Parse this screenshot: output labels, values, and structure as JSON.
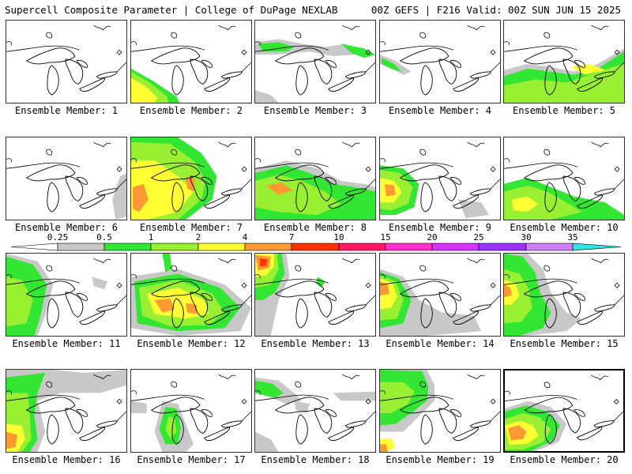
{
  "header": {
    "title_left": "Supercell Composite Parameter | College of DuPage NEXLAB",
    "title_right": "00Z GEFS | F216 Valid: 00Z SUN JUN 15 2025"
  },
  "colors": {
    "c0": "#c8c8c8",
    "c1": "#33e633",
    "c2": "#99f033",
    "c3": "#ffff33",
    "c4": "#ff9933",
    "c5": "#ff3300",
    "c6": "#ff1a66",
    "c7": "#ff33cc",
    "c8": "#d633ff",
    "c9": "#9933ff",
    "c10": "#cc80ff",
    "c11": "#33e6e6"
  },
  "colorbar": {
    "ticks": [
      "0.25",
      "0.5",
      "1",
      "2",
      "4",
      "7",
      "10",
      "15",
      "20",
      "25",
      "30",
      "35"
    ]
  },
  "members": [
    {
      "label": "Ensemble Member: 1",
      "selected": false,
      "blobs": []
    },
    {
      "label": "Ensemble Member: 2",
      "selected": false,
      "blobs": [
        {
          "c": "c1",
          "p": "0,62 28,78 58,98 62,106 0,106"
        },
        {
          "c": "c2",
          "p": "0,66 24,80 46,98 48,106 0,106"
        },
        {
          "c": "c3",
          "p": "0,74 20,86 34,100 30,106 0,106"
        }
      ]
    },
    {
      "label": "Ensemble Member: 3",
      "selected": false,
      "blobs": [
        {
          "c": "c0",
          "p": "0,28 30,24 60,30 90,34 116,30 130,44 100,46 70,40 30,44 0,44"
        },
        {
          "c": "c1",
          "p": "4,30 30,28 50,34 40,40 10,40"
        },
        {
          "c": "c1",
          "p": "110,30 140,36 154,44 140,48 124,42"
        },
        {
          "c": "c0",
          "p": "0,90 20,96 30,106 0,106"
        }
      ]
    },
    {
      "label": "Ensemble Member: 4",
      "selected": false,
      "blobs": [
        {
          "c": "c0",
          "p": "0,44 20,52 40,66 30,70 10,60 0,56"
        },
        {
          "c": "c1",
          "p": "2,48 18,56 28,66 14,62 2,56"
        }
      ]
    },
    {
      "label": "Ensemble Member: 5",
      "selected": false,
      "blobs": [
        {
          "c": "c0",
          "p": "0,64 30,56 60,60 90,66 120,56 154,36 154,106 0,106"
        },
        {
          "c": "c1",
          "p": "0,72 30,62 60,66 90,70 120,62 154,40 154,106 0,106"
        },
        {
          "c": "c2",
          "p": "0,84 40,76 80,80 110,70 140,60 154,56 154,106 0,106"
        },
        {
          "c": "c3",
          "p": "86,60 110,56 130,64 104,70"
        }
      ]
    },
    {
      "label": "Ensemble Member: 6",
      "selected": false,
      "blobs": [
        {
          "c": "c0",
          "p": "146,50 154,46 154,102 140,106 136,80"
        }
      ]
    },
    {
      "label": "Ensemble Member: 7",
      "selected": false,
      "blobs": [
        {
          "c": "c1",
          "p": "0,0 60,0 90,20 110,50 104,80 70,106 0,106"
        },
        {
          "c": "c2",
          "p": "0,6 50,8 80,30 96,56 90,80 60,106 0,106"
        },
        {
          "c": "c3",
          "p": "0,30 30,30 60,50 80,70 60,96 20,106 0,106"
        },
        {
          "c": "c4",
          "p": "2,64 16,60 22,80 10,96 2,92"
        },
        {
          "c": "c4",
          "p": "70,50 82,54 80,70 72,66"
        }
      ]
    },
    {
      "label": "Ensemble Member: 8",
      "selected": false,
      "blobs": [
        {
          "c": "c0",
          "p": "0,40 40,30 80,40 110,56 140,60 154,64 154,106 0,106"
        },
        {
          "c": "c1",
          "p": "0,46 40,36 70,46 100,60 140,66 154,70 154,106 0,106"
        },
        {
          "c": "c2",
          "p": "0,56 30,48 60,56 90,70 110,86 80,100 30,96 0,90"
        },
        {
          "c": "c4",
          "p": "14,62 34,58 48,68 30,74"
        }
      ]
    },
    {
      "label": "Ensemble Member: 9",
      "selected": false,
      "blobs": [
        {
          "c": "c1",
          "p": "0,36 30,40 50,60 44,90 20,100 0,100"
        },
        {
          "c": "c2",
          "p": "0,42 26,46 42,64 36,86 14,94 0,92"
        },
        {
          "c": "c3",
          "p": "0,52 18,56 28,70 18,84 0,84"
        },
        {
          "c": "c4",
          "p": "6,60 18,62 20,74 8,76"
        },
        {
          "c": "c0",
          "p": "100,80 130,84 140,100 110,104"
        }
      ]
    },
    {
      "label": "Ensemble Member: 10",
      "selected": false,
      "blobs": [
        {
          "c": "c1",
          "p": "0,60 30,52 60,64 90,76 130,84 154,100 154,106 0,106"
        },
        {
          "c": "c2",
          "p": "0,70 30,62 56,70 80,84 100,96 60,106 0,106"
        },
        {
          "c": "c3",
          "p": "10,80 30,76 44,86 30,96 12,94"
        }
      ]
    },
    {
      "label": "Ensemble Member: 11",
      "selected": false,
      "blobs": [
        {
          "c": "c0",
          "p": "0,0 40,10 60,40 50,80 40,106 0,106"
        },
        {
          "c": "c1",
          "p": "0,4 34,14 52,40 44,80 36,106 0,106"
        },
        {
          "c": "c2",
          "p": "0,30 20,34 34,60 26,90 0,94"
        },
        {
          "c": "c0",
          "p": "110,30 130,36 126,46 112,42"
        }
      ]
    },
    {
      "label": "Ensemble Member: 12",
      "selected": false,
      "blobs": [
        {
          "c": "c0",
          "p": "0,30 60,20 120,40 154,70 140,100 60,106 0,96"
        },
        {
          "c": "c1",
          "p": "4,36 60,26 114,44 140,70 120,96 60,100 8,90"
        },
        {
          "c": "c2",
          "p": "10,44 60,34 104,52 120,76 100,92 50,94 14,80"
        },
        {
          "c": "c3",
          "p": "20,52 60,44 94,60 100,78 70,84 30,78"
        },
        {
          "c": "c4",
          "p": "30,60 50,58 56,72 40,76"
        },
        {
          "c": "c4",
          "p": "70,64 84,66 84,78 72,76"
        },
        {
          "c": "c1",
          "p": "40,0 50,0 52,20 44,24"
        }
      ]
    },
    {
      "label": "Ensemble Member: 13",
      "selected": false,
      "blobs": [
        {
          "c": "c0",
          "p": "0,0 40,0 44,30 30,60 20,106 0,106"
        },
        {
          "c": "c1",
          "p": "0,0 34,0 38,26 26,50 10,60 0,60"
        },
        {
          "c": "c2",
          "p": "0,0 28,0 30,20 20,40 0,44"
        },
        {
          "c": "c3",
          "p": "0,0 24,0 24,16 14,28 0,30"
        },
        {
          "c": "c4",
          "p": "0,2 20,4 18,18 4,22"
        },
        {
          "c": "c5",
          "p": "6,6 16,8 14,16 6,16"
        },
        {
          "c": "c1",
          "p": "80,30 90,36 84,44 78,38"
        }
      ]
    },
    {
      "label": "Ensemble Member: 14",
      "selected": false,
      "blobs": [
        {
          "c": "c0",
          "p": "0,20 30,30 50,60 80,76 120,80 130,100 60,106 0,106"
        },
        {
          "c": "c1",
          "p": "0,24 24,32 40,60 30,90 0,96"
        },
        {
          "c": "c2",
          "p": "0,28 20,36 30,60 22,84 0,86"
        },
        {
          "c": "c3",
          "p": "0,32 16,38 22,56 14,70 0,72"
        },
        {
          "c": "c4",
          "p": "0,36 10,40 12,52 0,54"
        }
      ]
    },
    {
      "label": "Ensemble Member: 15",
      "selected": false,
      "blobs": [
        {
          "c": "c0",
          "p": "0,0 30,0 50,20 60,50 80,76 100,84 80,100 30,106 0,106"
        },
        {
          "c": "c1",
          "p": "0,0 24,4 40,24 46,50 60,76 50,96 20,106 0,106"
        },
        {
          "c": "c2",
          "p": "0,20 20,26 32,46 36,70 22,88 0,90"
        },
        {
          "c": "c3",
          "p": "0,34 14,38 20,54 10,66 0,66"
        },
        {
          "c": "c4",
          "p": "0,40 8,44 10,54 0,56"
        }
      ]
    },
    {
      "label": "Ensemble Member: 16",
      "selected": false,
      "blobs": [
        {
          "c": "c0",
          "p": "0,0 60,0 100,4 154,0 154,20 120,30 70,30 40,40 50,80 40,106 0,106"
        },
        {
          "c": "c1",
          "p": "0,10 50,4 40,30 36,60 40,90 30,106 0,106"
        },
        {
          "c": "c2",
          "p": "0,30 28,30 30,60 32,90 20,106 0,106"
        },
        {
          "c": "c3",
          "p": "0,70 20,72 24,90 14,106 0,106"
        },
        {
          "c": "c4",
          "p": "0,80 14,84 12,100 0,102"
        }
      ]
    },
    {
      "label": "Ensemble Member: 17",
      "selected": false,
      "blobs": [
        {
          "c": "c0",
          "p": "40,40 60,44 70,70 80,96 70,106 40,106 30,80"
        },
        {
          "c": "c1",
          "p": "44,48 58,50 64,74 60,96 44,96 36,76"
        },
        {
          "c": "c2",
          "p": "48,60 56,62 58,80 50,88 44,78"
        },
        {
          "c": "c0",
          "p": "0,40 20,44 20,56 0,56"
        }
      ]
    },
    {
      "label": "Ensemble Member: 18",
      "selected": false,
      "blobs": [
        {
          "c": "c0",
          "p": "0,10 30,14 50,30 60,40 40,44 20,36 0,30"
        },
        {
          "c": "c1",
          "p": "0,14 22,18 36,30 26,36 0,30"
        },
        {
          "c": "c0",
          "p": "100,30 154,28 154,40 110,40"
        },
        {
          "c": "c0",
          "p": "50,40 70,44 66,56 52,52"
        },
        {
          "c": "c0",
          "p": "0,80 20,90 30,106 0,106"
        }
      ]
    },
    {
      "label": "Ensemble Member: 19",
      "selected": false,
      "blobs": [
        {
          "c": "c0",
          "p": "0,0 60,0 70,20 70,40 50,60 30,80 0,80"
        },
        {
          "c": "c1",
          "p": "0,0 54,2 62,22 60,40 40,56 20,70 0,72"
        },
        {
          "c": "c2",
          "p": "0,16 30,16 44,28 36,44 14,56 0,56"
        },
        {
          "c": "c3",
          "p": "0,90 14,88 20,100 8,106 0,106"
        },
        {
          "c": "c4",
          "p": "0,96 8,96 10,106 0,106"
        }
      ]
    },
    {
      "label": "Ensemble Member: 20",
      "selected": true,
      "blobs": [
        {
          "c": "c0",
          "p": "0,50 30,40 60,48 80,70 70,94 40,106 0,106"
        },
        {
          "c": "c1",
          "p": "0,54 28,46 54,54 72,72 62,92 34,106 0,106"
        },
        {
          "c": "c2",
          "p": "0,64 24,56 46,62 60,78 50,94 24,104 0,104"
        },
        {
          "c": "c3",
          "p": "0,72 20,66 36,72 44,86 30,96 6,98"
        },
        {
          "c": "c4",
          "p": "4,76 18,72 28,80 24,90 8,92"
        }
      ]
    }
  ]
}
